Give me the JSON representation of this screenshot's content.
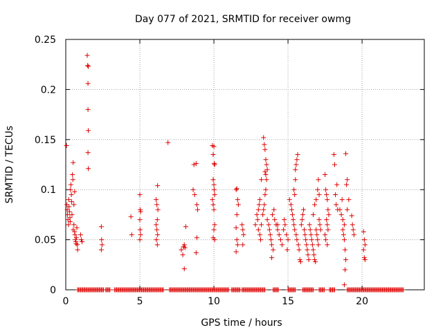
{
  "chart_data": {
    "type": "scatter",
    "title": "Day 077 of 2021, SRMTID for receiver owmg",
    "xlabel": "GPS time / hours",
    "ylabel": "SRMTID / TECUs",
    "xlim": [
      0,
      24.2
    ],
    "ylim": [
      0,
      0.25
    ],
    "xticks": [
      0,
      5,
      10,
      15,
      20
    ],
    "xtick_labels": [
      "0",
      "5",
      "10",
      "15",
      "20"
    ],
    "yticks": [
      0,
      0.05,
      0.1,
      0.15,
      0.2,
      0.25
    ],
    "ytick_labels": [
      "0",
      "0.05",
      "0.1",
      "0.15",
      "0.2",
      "0.25"
    ],
    "grid": true,
    "marker": "+",
    "marker_color": "#dd0000",
    "series": [
      {
        "name": "SRMTID",
        "points": [
          [
            0.05,
            0.144
          ],
          [
            0.08,
            0.085
          ],
          [
            0.1,
            0.08
          ],
          [
            0.12,
            0.075
          ],
          [
            0.15,
            0.07
          ],
          [
            0.18,
            0.065
          ],
          [
            0.2,
            0.09
          ],
          [
            0.22,
            0.083
          ],
          [
            0.25,
            0.078
          ],
          [
            0.28,
            0.072
          ],
          [
            0.3,
            0.068
          ],
          [
            0.32,
            0.1
          ],
          [
            0.35,
            0.105
          ],
          [
            0.38,
            0.095
          ],
          [
            0.4,
            0.088
          ],
          [
            0.42,
            0.075
          ],
          [
            0.45,
            0.115
          ],
          [
            0.48,
            0.11
          ],
          [
            0.5,
            0.127
          ],
          [
            0.55,
            0.065
          ],
          [
            0.6,
            0.058
          ],
          [
            0.62,
            0.055
          ],
          [
            0.65,
            0.05
          ],
          [
            0.68,
            0.048
          ],
          [
            0.7,
            0.046
          ],
          [
            0.72,
            0.052
          ],
          [
            0.75,
            0.062
          ],
          [
            0.78,
            0.045
          ],
          [
            0.8,
            0.04
          ],
          [
            0.5,
            0.06
          ],
          [
            0.55,
            0.085
          ],
          [
            0.6,
            0.098
          ],
          [
            1.0,
            0.055
          ],
          [
            1.05,
            0.05
          ],
          [
            1.1,
            0.048
          ],
          [
            1.45,
            0.234
          ],
          [
            1.48,
            0.224
          ],
          [
            1.52,
            0.223
          ],
          [
            1.5,
            0.206
          ],
          [
            1.5,
            0.18
          ],
          [
            1.52,
            0.159
          ],
          [
            1.5,
            0.137
          ],
          [
            1.52,
            0.121
          ],
          [
            2.4,
            0.063
          ],
          [
            2.42,
            0.05
          ],
          [
            2.45,
            0.045
          ],
          [
            2.4,
            0.04
          ],
          [
            4.4,
            0.073
          ],
          [
            4.45,
            0.055
          ],
          [
            5.0,
            0.095
          ],
          [
            5.02,
            0.08
          ],
          [
            5.05,
            0.078
          ],
          [
            5.0,
            0.07
          ],
          [
            5.02,
            0.06
          ],
          [
            5.05,
            0.055
          ],
          [
            5.0,
            0.05
          ],
          [
            6.1,
            0.09
          ],
          [
            6.15,
            0.085
          ],
          [
            6.2,
            0.104
          ],
          [
            6.22,
            0.08
          ],
          [
            6.18,
            0.07
          ],
          [
            6.1,
            0.065
          ],
          [
            6.15,
            0.06
          ],
          [
            6.2,
            0.055
          ],
          [
            6.12,
            0.05
          ],
          [
            6.18,
            0.045
          ],
          [
            6.9,
            0.147
          ],
          [
            7.8,
            0.04
          ],
          [
            7.9,
            0.035
          ],
          [
            7.95,
            0.043
          ],
          [
            8.0,
            0.045
          ],
          [
            8.05,
            0.042
          ],
          [
            8.1,
            0.063
          ],
          [
            8.0,
            0.021
          ],
          [
            8.6,
            0.1
          ],
          [
            8.65,
            0.125
          ],
          [
            8.7,
            0.095
          ],
          [
            8.8,
            0.126
          ],
          [
            8.85,
            0.085
          ],
          [
            8.9,
            0.08
          ],
          [
            8.85,
            0.052
          ],
          [
            8.8,
            0.037
          ],
          [
            9.9,
            0.144
          ],
          [
            9.95,
            0.135
          ],
          [
            10.0,
            0.143
          ],
          [
            10.02,
            0.126
          ],
          [
            10.05,
            0.125
          ],
          [
            9.95,
            0.11
          ],
          [
            10.0,
            0.105
          ],
          [
            10.02,
            0.1
          ],
          [
            10.05,
            0.095
          ],
          [
            9.9,
            0.09
          ],
          [
            9.95,
            0.085
          ],
          [
            10.0,
            0.08
          ],
          [
            10.05,
            0.065
          ],
          [
            10.0,
            0.06
          ],
          [
            9.95,
            0.052
          ],
          [
            10.05,
            0.05
          ],
          [
            11.5,
            0.1
          ],
          [
            11.55,
            0.101
          ],
          [
            11.6,
            0.09
          ],
          [
            11.65,
            0.085
          ],
          [
            11.55,
            0.075
          ],
          [
            11.5,
            0.062
          ],
          [
            11.55,
            0.05
          ],
          [
            11.6,
            0.045
          ],
          [
            11.5,
            0.038
          ],
          [
            11.9,
            0.065
          ],
          [
            11.95,
            0.06
          ],
          [
            12.0,
            0.055
          ],
          [
            11.95,
            0.045
          ],
          [
            12.8,
            0.065
          ],
          [
            12.9,
            0.075
          ],
          [
            13.0,
            0.08
          ],
          [
            13.05,
            0.085
          ],
          [
            13.1,
            0.09
          ],
          [
            12.95,
            0.07
          ],
          [
            13.0,
            0.06
          ],
          [
            13.1,
            0.055
          ],
          [
            13.15,
            0.05
          ],
          [
            13.2,
            0.065
          ],
          [
            13.3,
            0.075
          ],
          [
            13.35,
            0.08
          ],
          [
            13.4,
            0.085
          ],
          [
            13.45,
            0.095
          ],
          [
            13.5,
            0.1
          ],
          [
            13.55,
            0.11
          ],
          [
            13.6,
            0.12
          ],
          [
            13.35,
            0.152
          ],
          [
            13.4,
            0.145
          ],
          [
            13.45,
            0.14
          ],
          [
            13.5,
            0.13
          ],
          [
            13.55,
            0.125
          ],
          [
            13.45,
            0.118
          ],
          [
            13.5,
            0.115
          ],
          [
            13.2,
            0.11
          ],
          [
            13.6,
            0.07
          ],
          [
            13.7,
            0.065
          ],
          [
            13.75,
            0.06
          ],
          [
            13.8,
            0.055
          ],
          [
            13.85,
            0.05
          ],
          [
            13.9,
            0.045
          ],
          [
            14.0,
            0.04
          ],
          [
            13.9,
            0.032
          ],
          [
            13.95,
            0.075
          ],
          [
            14.05,
            0.08
          ],
          [
            14.1,
            0.07
          ],
          [
            14.2,
            0.065
          ],
          [
            14.3,
            0.06
          ],
          [
            14.4,
            0.055
          ],
          [
            14.5,
            0.05
          ],
          [
            14.3,
            0.065
          ],
          [
            14.6,
            0.045
          ],
          [
            14.7,
            0.06
          ],
          [
            14.75,
            0.07
          ],
          [
            14.8,
            0.065
          ],
          [
            14.9,
            0.055
          ],
          [
            15.0,
            0.05
          ],
          [
            14.95,
            0.04
          ],
          [
            15.1,
            0.09
          ],
          [
            15.2,
            0.085
          ],
          [
            15.25,
            0.08
          ],
          [
            15.3,
            0.075
          ],
          [
            15.35,
            0.07
          ],
          [
            15.4,
            0.1
          ],
          [
            15.45,
            0.095
          ],
          [
            15.5,
            0.12
          ],
          [
            15.55,
            0.125
          ],
          [
            15.6,
            0.13
          ],
          [
            15.65,
            0.135
          ],
          [
            15.5,
            0.11
          ],
          [
            15.4,
            0.065
          ],
          [
            15.45,
            0.06
          ],
          [
            15.55,
            0.055
          ],
          [
            15.6,
            0.05
          ],
          [
            15.7,
            0.045
          ],
          [
            15.75,
            0.04
          ],
          [
            15.8,
            0.03
          ],
          [
            15.85,
            0.028
          ],
          [
            15.9,
            0.065
          ],
          [
            15.95,
            0.07
          ],
          [
            16.0,
            0.075
          ],
          [
            16.05,
            0.08
          ],
          [
            16.1,
            0.06
          ],
          [
            16.15,
            0.055
          ],
          [
            16.2,
            0.05
          ],
          [
            16.25,
            0.045
          ],
          [
            16.3,
            0.04
          ],
          [
            16.35,
            0.035
          ],
          [
            16.4,
            0.03
          ],
          [
            16.45,
            0.065
          ],
          [
            16.5,
            0.06
          ],
          [
            16.55,
            0.055
          ],
          [
            16.6,
            0.05
          ],
          [
            16.65,
            0.045
          ],
          [
            16.7,
            0.04
          ],
          [
            16.75,
            0.035
          ],
          [
            16.8,
            0.03
          ],
          [
            16.85,
            0.028
          ],
          [
            16.9,
            0.06
          ],
          [
            16.95,
            0.055
          ],
          [
            17.0,
            0.05
          ],
          [
            17.05,
            0.045
          ],
          [
            17.1,
            0.07
          ],
          [
            17.15,
            0.065
          ],
          [
            17.2,
            0.06
          ],
          [
            16.7,
            0.075
          ],
          [
            16.8,
            0.085
          ],
          [
            16.9,
            0.09
          ],
          [
            17.0,
            0.1
          ],
          [
            17.05,
            0.11
          ],
          [
            17.1,
            0.095
          ],
          [
            17.5,
            0.115
          ],
          [
            17.55,
            0.1
          ],
          [
            17.6,
            0.095
          ],
          [
            17.65,
            0.09
          ],
          [
            17.7,
            0.08
          ],
          [
            17.75,
            0.075
          ],
          [
            17.6,
            0.07
          ],
          [
            17.65,
            0.065
          ],
          [
            17.7,
            0.06
          ],
          [
            17.5,
            0.055
          ],
          [
            17.55,
            0.05
          ],
          [
            17.65,
            0.045
          ],
          [
            18.1,
            0.135
          ],
          [
            18.15,
            0.125
          ],
          [
            18.2,
            0.095
          ],
          [
            18.25,
            0.085
          ],
          [
            18.3,
            0.105
          ],
          [
            18.35,
            0.08
          ],
          [
            18.5,
            0.08
          ],
          [
            18.6,
            0.075
          ],
          [
            18.7,
            0.07
          ],
          [
            18.8,
            0.065
          ],
          [
            18.65,
            0.09
          ],
          [
            18.7,
            0.06
          ],
          [
            18.75,
            0.055
          ],
          [
            18.8,
            0.05
          ],
          [
            18.85,
            0.04
          ],
          [
            18.9,
            0.03
          ],
          [
            18.85,
            0.02
          ],
          [
            18.8,
            0.005
          ],
          [
            18.95,
            0.105
          ],
          [
            19.0,
            0.11
          ],
          [
            18.9,
            0.136
          ],
          [
            19.0,
            0.08
          ],
          [
            19.1,
            0.09
          ],
          [
            19.3,
            0.074
          ],
          [
            19.35,
            0.065
          ],
          [
            19.4,
            0.06
          ],
          [
            19.45,
            0.055
          ],
          [
            20.1,
            0.058
          ],
          [
            20.15,
            0.05
          ],
          [
            20.2,
            0.045
          ],
          [
            20.1,
            0.04
          ],
          [
            20.15,
            0.032
          ],
          [
            20.2,
            0.03
          ]
        ]
      },
      {
        "name": "zero-level",
        "x_ranges": [
          [
            0.8,
            2.6
          ],
          [
            2.7,
            3.0
          ],
          [
            3.3,
            6.6
          ],
          [
            7.0,
            11.0
          ],
          [
            11.2,
            11.8
          ],
          [
            11.9,
            13.5
          ],
          [
            14.0,
            14.4
          ],
          [
            15.0,
            15.5
          ],
          [
            16.0,
            16.7
          ],
          [
            17.1,
            17.5
          ],
          [
            17.8,
            18.2
          ],
          [
            19.0,
            22.8
          ]
        ],
        "y": 0
      }
    ]
  }
}
